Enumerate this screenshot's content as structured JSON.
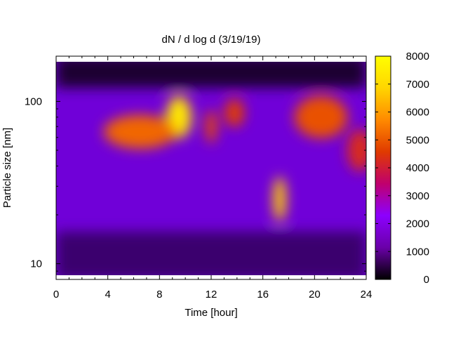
{
  "chart_data": {
    "type": "heatmap",
    "title": "dN / d log d (3/19/19)",
    "xlabel": "Time [hour]",
    "ylabel": "Particle size [nm]",
    "xlim": [
      0,
      24
    ],
    "x_ticks": [
      0,
      4,
      8,
      12,
      16,
      20,
      24
    ],
    "y_scale": "log",
    "ylim": [
      8,
      190
    ],
    "y_ticks": [
      10,
      100
    ],
    "colorbar": {
      "range": [
        0,
        8000
      ],
      "ticks": [
        0,
        1000,
        2000,
        3000,
        4000,
        5000,
        6000,
        7000,
        8000
      ],
      "colormap": [
        "#000000",
        "#6a00a8",
        "#8c00ff",
        "#c0006e",
        "#e03a00",
        "#ff8a00",
        "#ffd500",
        "#ffff00"
      ]
    },
    "features": [
      {
        "time": 9.5,
        "size_nm": 80,
        "value": 7400
      },
      {
        "time": 17.3,
        "size_nm": 25,
        "value": 6800
      },
      {
        "time": 6.5,
        "size_nm": 65,
        "value": 5200
      },
      {
        "time": 12.0,
        "size_nm": 70,
        "value": 4800
      },
      {
        "time": 13.8,
        "size_nm": 85,
        "value": 4600
      },
      {
        "time": 20.5,
        "size_nm": 80,
        "value": 4900
      },
      {
        "time": 23.5,
        "size_nm": 50,
        "value": 4300
      }
    ]
  }
}
